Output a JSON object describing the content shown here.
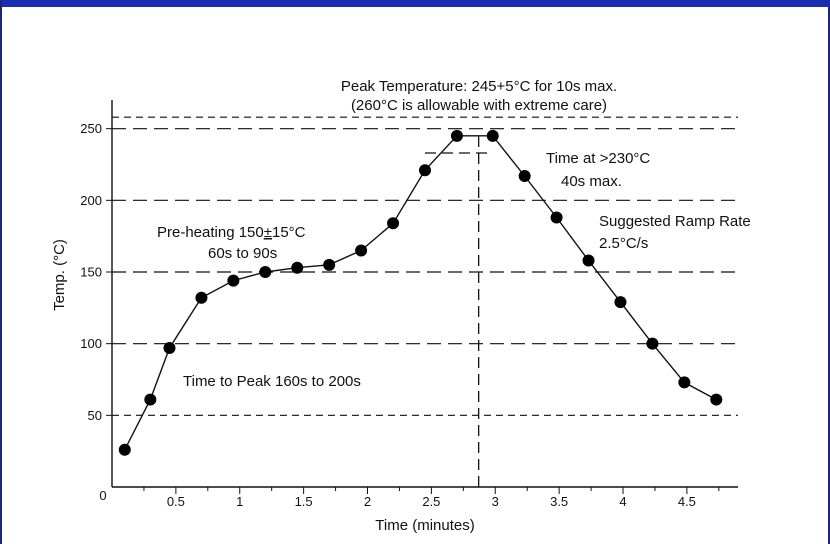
{
  "colors": {
    "frame": "#1a237e",
    "topbar": "#1a2db0",
    "ink": "#111111"
  },
  "chart_data": {
    "type": "line",
    "title": "",
    "xlabel": "Time (minutes)",
    "ylabel": "Temp. (°C)",
    "x_origin_label": "0",
    "xlim": [
      0,
      4.9
    ],
    "ylim": [
      0,
      270
    ],
    "x_ticks": [
      {
        "value": 0.5,
        "label": "0.5"
      },
      {
        "value": 1,
        "label": "1"
      },
      {
        "value": 1.5,
        "label": "1.5"
      },
      {
        "value": 2,
        "label": "2"
      },
      {
        "value": 2.5,
        "label": "2.5"
      },
      {
        "value": 3,
        "label": "3"
      },
      {
        "value": 3.5,
        "label": "3.5"
      },
      {
        "value": 4,
        "label": "4"
      },
      {
        "value": 4.5,
        "label": "4.5"
      }
    ],
    "y_ticks": [
      {
        "value": 50,
        "label": "50"
      },
      {
        "value": 100,
        "label": "100"
      },
      {
        "value": 150,
        "label": "150"
      },
      {
        "value": 200,
        "label": "200"
      },
      {
        "value": 250,
        "label": "250"
      }
    ],
    "reference_lines_y": [
      {
        "value": 50,
        "style": "short-dash"
      },
      {
        "value": 100,
        "style": "long-dash"
      },
      {
        "value": 150,
        "style": "long-dash"
      },
      {
        "value": 200,
        "style": "long-dash"
      },
      {
        "value": 250,
        "style": "long-dash"
      },
      {
        "value": 258,
        "style": "short-dash"
      }
    ],
    "peak_marker": {
      "x": 2.87,
      "y_from": 0,
      "y_to": 245
    },
    "time_above_230_bracket": {
      "x_from": 2.45,
      "x_to": 2.98,
      "y": 233
    },
    "series": [
      {
        "points": [
          {
            "x": 0.1,
            "y": 26
          },
          {
            "x": 0.3,
            "y": 61
          },
          {
            "x": 0.45,
            "y": 97
          },
          {
            "x": 0.7,
            "y": 132
          },
          {
            "x": 0.95,
            "y": 144
          },
          {
            "x": 1.2,
            "y": 150
          },
          {
            "x": 1.45,
            "y": 153
          },
          {
            "x": 1.7,
            "y": 155
          },
          {
            "x": 1.95,
            "y": 165
          },
          {
            "x": 2.2,
            "y": 184
          },
          {
            "x": 2.45,
            "y": 221
          },
          {
            "x": 2.7,
            "y": 245
          },
          {
            "x": 2.98,
            "y": 245
          },
          {
            "x": 3.23,
            "y": 217
          },
          {
            "x": 3.48,
            "y": 188
          },
          {
            "x": 3.73,
            "y": 158
          },
          {
            "x": 3.98,
            "y": 129
          },
          {
            "x": 4.23,
            "y": 100
          },
          {
            "x": 4.48,
            "y": 73
          },
          {
            "x": 4.73,
            "y": 61
          }
        ]
      }
    ],
    "annotations": {
      "peak_line1": "Peak Temperature: 245+5°C for 10s max.",
      "peak_line2": "(260°C is allowable with extreme care)",
      "time_above_line1": "Time at >230°C",
      "time_above_line2": "40s max.",
      "ramp_line1": "Suggested Ramp Rate",
      "ramp_line2": "2.5°C/s",
      "preheat_line1_prefix": "Pre-heating 150",
      "preheat_line1_pm": "±",
      "preheat_line1_suffix": "15°C",
      "preheat_line2": "60s to 90s",
      "time_to_peak": "Time to Peak 160s to 200s"
    }
  }
}
